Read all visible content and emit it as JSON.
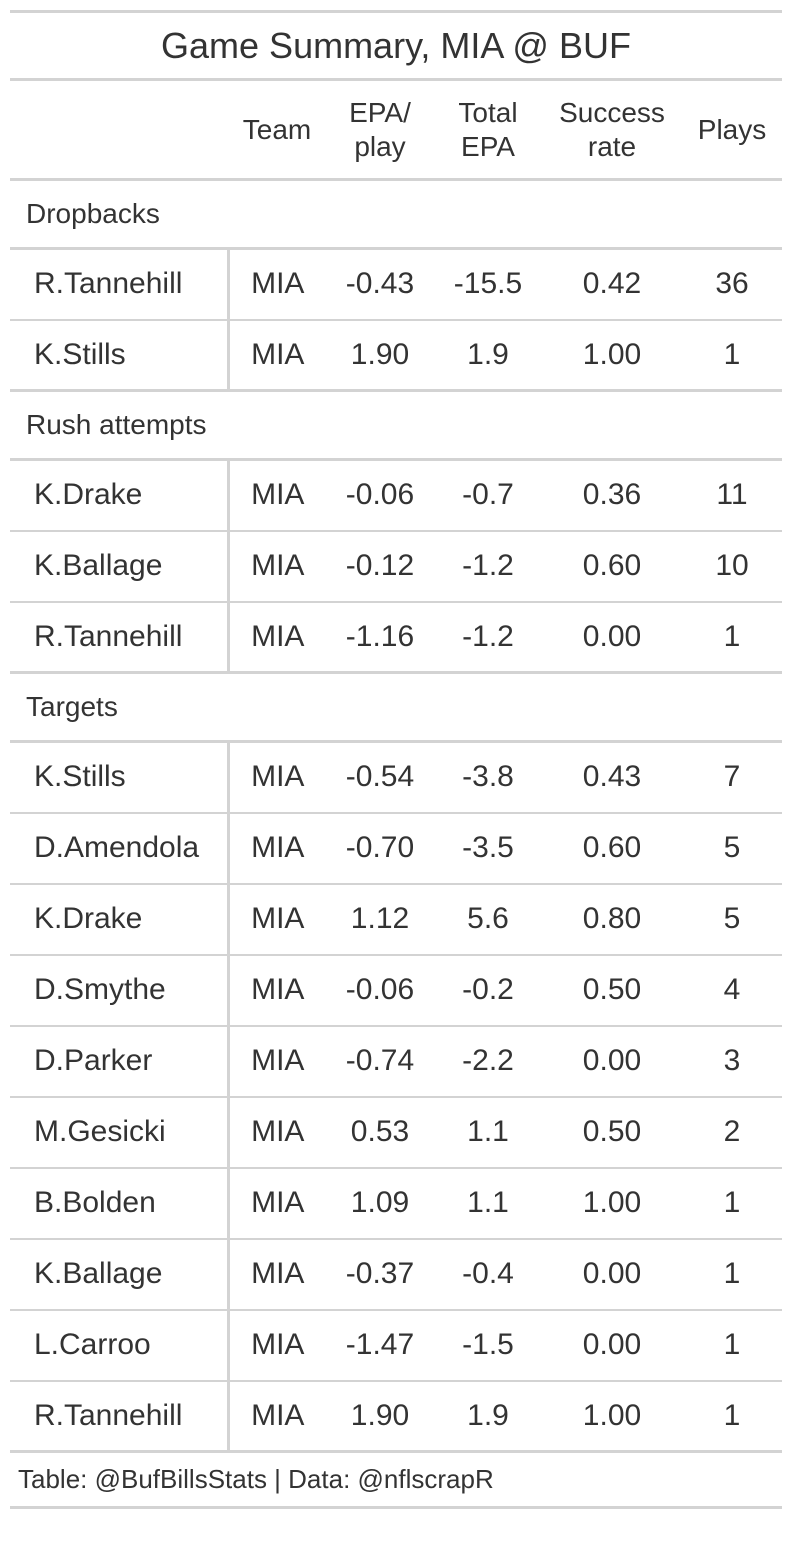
{
  "chart_data": {
    "type": "table",
    "title": "Game Summary, MIA @ BUF",
    "columns": [
      "",
      "Team",
      "EPA/ play",
      "Total EPA",
      "Success rate",
      "Plays"
    ],
    "column_lines": [
      [
        ""
      ],
      [
        "Team"
      ],
      [
        "EPA/",
        "play"
      ],
      [
        "Total",
        "EPA"
      ],
      [
        "Success",
        "rate"
      ],
      [
        "Plays"
      ]
    ],
    "groups": [
      {
        "name": "Dropbacks",
        "rows": [
          {
            "player": "R.Tannehill",
            "team": "MIA",
            "epa_play": "-0.43",
            "total_epa": "-15.5",
            "success_rate": "0.42",
            "plays": "36"
          },
          {
            "player": "K.Stills",
            "team": "MIA",
            "epa_play": "1.90",
            "total_epa": "1.9",
            "success_rate": "1.00",
            "plays": "1"
          }
        ]
      },
      {
        "name": "Rush attempts",
        "rows": [
          {
            "player": "K.Drake",
            "team": "MIA",
            "epa_play": "-0.06",
            "total_epa": "-0.7",
            "success_rate": "0.36",
            "plays": "11"
          },
          {
            "player": "K.Ballage",
            "team": "MIA",
            "epa_play": "-0.12",
            "total_epa": "-1.2",
            "success_rate": "0.60",
            "plays": "10"
          },
          {
            "player": "R.Tannehill",
            "team": "MIA",
            "epa_play": "-1.16",
            "total_epa": "-1.2",
            "success_rate": "0.00",
            "plays": "1"
          }
        ]
      },
      {
        "name": "Targets",
        "rows": [
          {
            "player": "K.Stills",
            "team": "MIA",
            "epa_play": "-0.54",
            "total_epa": "-3.8",
            "success_rate": "0.43",
            "plays": "7"
          },
          {
            "player": "D.Amendola",
            "team": "MIA",
            "epa_play": "-0.70",
            "total_epa": "-3.5",
            "success_rate": "0.60",
            "plays": "5"
          },
          {
            "player": "K.Drake",
            "team": "MIA",
            "epa_play": "1.12",
            "total_epa": "5.6",
            "success_rate": "0.80",
            "plays": "5"
          },
          {
            "player": "D.Smythe",
            "team": "MIA",
            "epa_play": "-0.06",
            "total_epa": "-0.2",
            "success_rate": "0.50",
            "plays": "4"
          },
          {
            "player": "D.Parker",
            "team": "MIA",
            "epa_play": "-0.74",
            "total_epa": "-2.2",
            "success_rate": "0.00",
            "plays": "3"
          },
          {
            "player": "M.Gesicki",
            "team": "MIA",
            "epa_play": "0.53",
            "total_epa": "1.1",
            "success_rate": "0.50",
            "plays": "2"
          },
          {
            "player": "B.Bolden",
            "team": "MIA",
            "epa_play": "1.09",
            "total_epa": "1.1",
            "success_rate": "1.00",
            "plays": "1"
          },
          {
            "player": "K.Ballage",
            "team": "MIA",
            "epa_play": "-0.37",
            "total_epa": "-0.4",
            "success_rate": "0.00",
            "plays": "1"
          },
          {
            "player": "L.Carroo",
            "team": "MIA",
            "epa_play": "-1.47",
            "total_epa": "-1.5",
            "success_rate": "0.00",
            "plays": "1"
          },
          {
            "player": "R.Tannehill",
            "team": "MIA",
            "epa_play": "1.90",
            "total_epa": "1.9",
            "success_rate": "1.00",
            "plays": "1"
          }
        ]
      }
    ],
    "source_note": "Table: @BufBillsStats | Data: @nflscrapR"
  },
  "colors": {
    "text": "#333333",
    "rule": "#d3d3d3",
    "background": "#ffffff"
  }
}
